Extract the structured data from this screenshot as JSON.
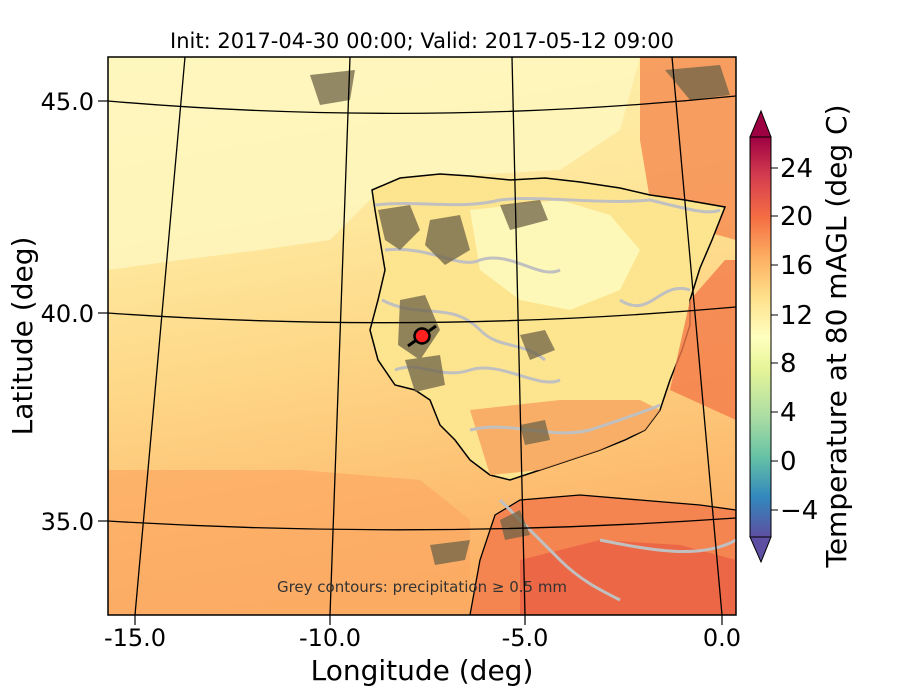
{
  "figure": {
    "title": "Init: 2017-04-30 00:00; Valid: 2017-05-12 09:00",
    "xlabel": "Longitude (deg)",
    "ylabel": "Latitude (deg)",
    "annotation": "Grey contours: precipitation ≥ 0.5 mm",
    "colorbar_label": "Temperature at 80 mAGL (deg C)"
  },
  "axes": {
    "xticks": [
      "-15.0",
      "-10.0",
      "-5.0",
      "0.0"
    ],
    "yticks": [
      "45.0",
      "40.0",
      "35.0"
    ],
    "xlim": [
      -15.9,
      0.3
    ],
    "ylim": [
      32.7,
      46.1
    ]
  },
  "colorbar": {
    "ticks": [
      "24",
      "20",
      "16",
      "12",
      "8",
      "4",
      "0",
      "−4"
    ],
    "range": [
      -6,
      28
    ],
    "colormap": "Spectral_r",
    "extend": "both"
  },
  "marker": {
    "name": "site",
    "lon": -7.6,
    "lat": 39.4,
    "color": "#ff2020"
  },
  "colors": {
    "sea_cool": "#fef3b0",
    "sea_mid": "#fed686",
    "sea_warm": "#fdb86a",
    "land_warm": "#f58b55",
    "land_hot": "#ec6a48",
    "interior_cool": "#fdfbbe",
    "precip_contour": "#c0c0c0",
    "terrain_dark": "#6e6347"
  }
}
